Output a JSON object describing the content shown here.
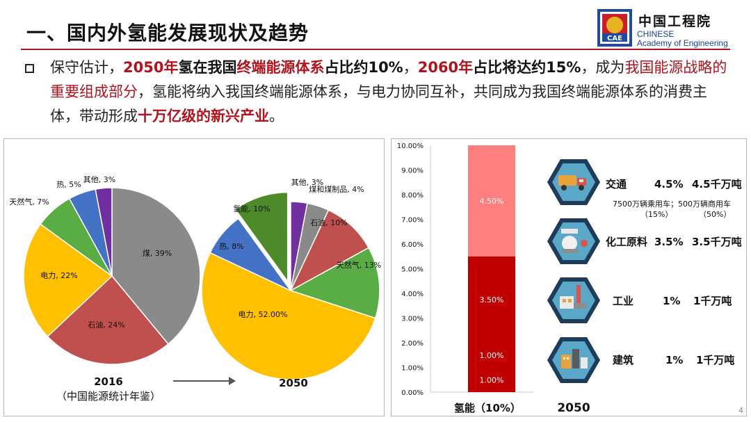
{
  "header": {
    "title": "一、国内外氢能发展现状及趋势",
    "logo_cn": "中国工程院",
    "logo_en_line1": "CHINESE",
    "logo_en_line2": "Academy of Engineering",
    "emblem_text": "CAE"
  },
  "intro": {
    "s1": "保守估计，",
    "s2": "2050年",
    "s3": "氢在我国",
    "s4": "终端能源体系",
    "s5": "占比约10%",
    "s6": "，",
    "s7": "2060年",
    "s8": "占比将达约15%",
    "s9": "，成为",
    "s10": "我国能源战略的重要组成部分",
    "s11": "，氢能将纳入我国终端能源体系，与电力协同互补，共同成为我国终端能源体系的消费主体，带动形成",
    "s12": "十万亿级的新兴产业",
    "s13": "。"
  },
  "chart_data": [
    {
      "type": "pie",
      "caption": "2016",
      "source": "（中国能源统计年鉴）",
      "labels": [
        "煤",
        "石油",
        "电力",
        "天然气",
        "热",
        "其他"
      ],
      "values": [
        39,
        24,
        22,
        7,
        5,
        3
      ],
      "value_labels": [
        "煤, 39%",
        "石油, 24%",
        "电力, 22%",
        "天然气, 7%",
        "热, 5%",
        "其他, 3%"
      ],
      "colors": [
        "#8a8a8a",
        "#c0504d",
        "#ffc000",
        "#5aac44",
        "#4472c4",
        "#7030a0"
      ]
    },
    {
      "type": "pie",
      "caption": "2050",
      "labels": [
        "其他",
        "煤和煤制品",
        "石油",
        "天然气",
        "电力",
        "热",
        "氢能"
      ],
      "values": [
        3,
        4,
        10,
        13,
        52,
        8,
        10
      ],
      "value_labels": [
        "其他, 3%",
        "煤和煤制品, 4%",
        "石油, 10%",
        "天然气, 13%",
        "电力, 52.00%",
        "热, 8%",
        "氢能, 10%"
      ],
      "exploded": [
        "氢能"
      ],
      "colors": [
        "#7030a0",
        "#8a8a8a",
        "#c0504d",
        "#5aac44",
        "#ffc000",
        "#4472c4",
        "#4e8a2a"
      ]
    },
    {
      "type": "bar",
      "stacked": true,
      "categories": [
        "氢能（10%）"
      ],
      "segments": [
        {
          "label": "1.00%",
          "value": 1.0,
          "color": "#c00000"
        },
        {
          "label": "1.00%",
          "value": 1.0,
          "color": "#c00000"
        },
        {
          "label": "3.50%",
          "value": 3.5,
          "color": "#c00000"
        },
        {
          "label": "4.50%",
          "value": 4.5,
          "color": "#ff7f7f"
        }
      ],
      "ylim": [
        0,
        10
      ],
      "yticks": [
        "0.00%",
        "1.00%",
        "2.00%",
        "3.00%",
        "4.00%",
        "5.00%",
        "6.00%",
        "7.00%",
        "8.00%",
        "9.00%",
        "10.00%"
      ],
      "xlabel": "2050"
    }
  ],
  "sectors": [
    {
      "icon": "truck-icon",
      "name": "交通",
      "share": "4.5%",
      "amount": "4.5千万吨",
      "note1": "7500万辆乘用车；500万辆商用车",
      "note2": "（15%）",
      "note3": "（50%）"
    },
    {
      "icon": "chemical-plant-icon",
      "name": "化工原料",
      "share": "3.5%",
      "amount": "3.5千万吨"
    },
    {
      "icon": "factory-icon",
      "name": "工业",
      "share": "1%",
      "amount": "1千万吨"
    },
    {
      "icon": "building-icon",
      "name": "建筑",
      "share": "1%",
      "amount": "1千万吨"
    }
  ],
  "colors": {
    "accent_red": "#b1121c",
    "hex_blue": "#1f3b5a",
    "hex_cyan": "#5aa7c7"
  },
  "page_number": "4"
}
